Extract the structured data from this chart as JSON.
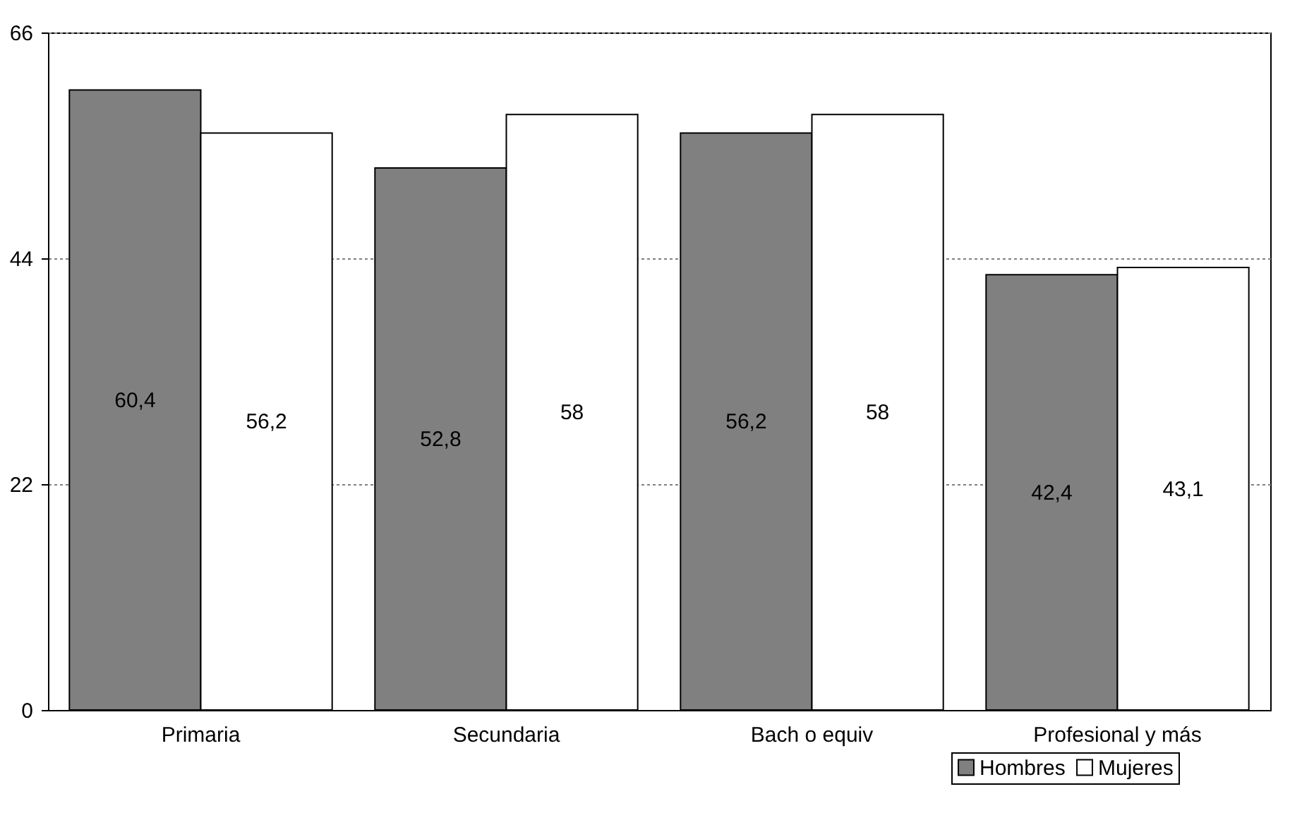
{
  "chart_data": {
    "type": "bar",
    "categories": [
      "Primaria",
      "Secundaria",
      "Bach o equiv",
      "Profesional y más"
    ],
    "series": [
      {
        "name": "Hombres",
        "color": "#808080",
        "values": [
          60.4,
          52.8,
          56.2,
          42.4
        ],
        "value_labels": [
          "60,4",
          "52,8",
          "56,2",
          "42,4"
        ]
      },
      {
        "name": "Mujeres",
        "color": "#ffffff",
        "values": [
          56.2,
          58,
          58,
          43.1
        ],
        "value_labels": [
          "56,2",
          "58",
          "58",
          "43,1"
        ]
      }
    ],
    "ylim": [
      0,
      66
    ],
    "yticks": [
      0,
      22,
      44,
      66
    ],
    "grid": "y",
    "legend": "bottom right"
  }
}
